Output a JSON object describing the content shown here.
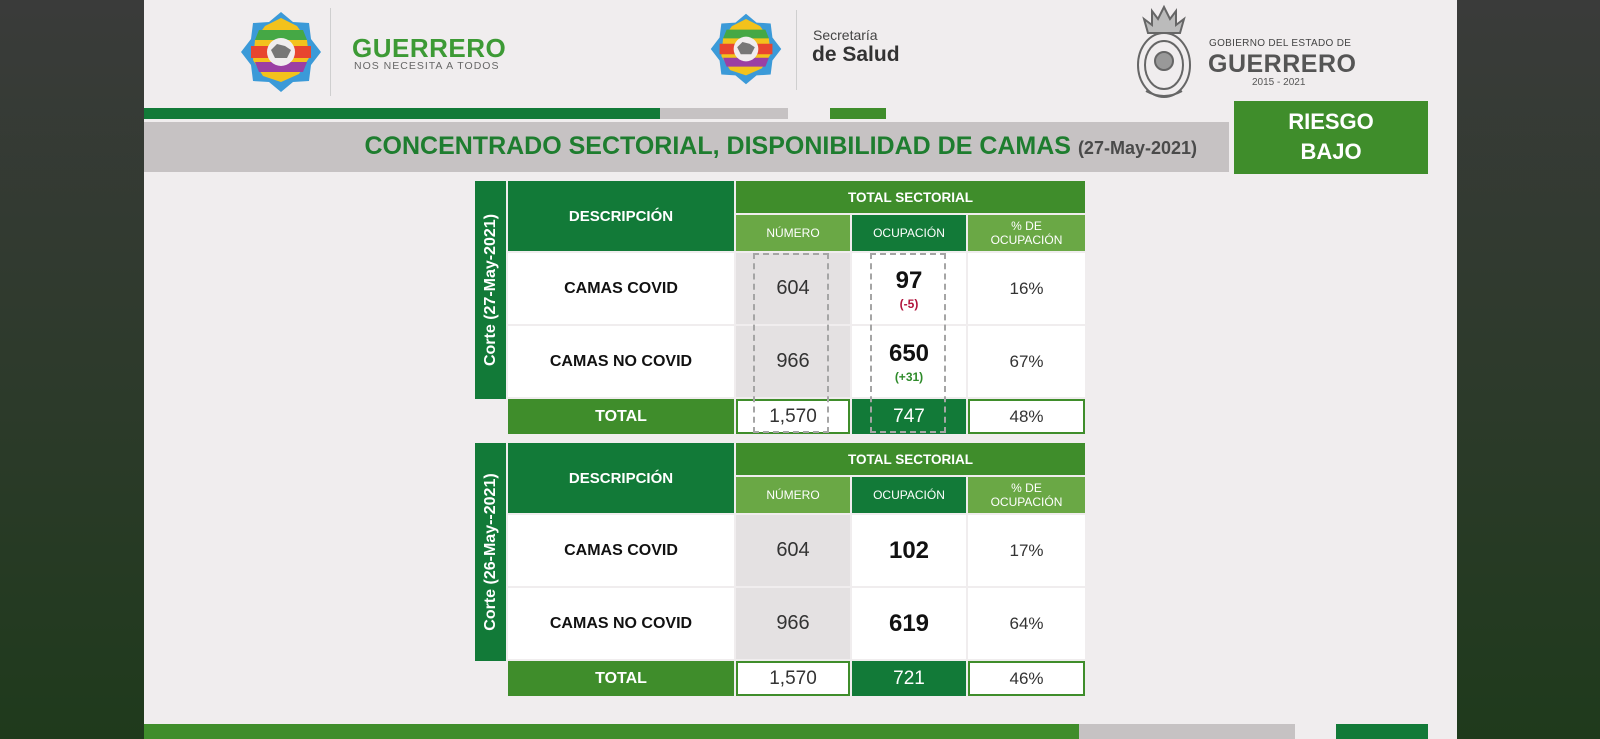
{
  "header": {
    "brand1_title": "GUERRERO",
    "brand1_sub": "NOS NECESITA A TODOS",
    "brand2_top": "Secretaría",
    "brand2_main": "de Salud",
    "brand3_top": "GOBIERNO DEL ESTADO DE",
    "brand3_main": "GUERRERO",
    "brand3_years": "2015 - 2021"
  },
  "title": {
    "main": "CONCENTRADO SECTORIAL, DISPONIBILIDAD DE CAMAS",
    "date": "(27-May-2021)"
  },
  "risk": {
    "line1": "RIESGO",
    "line2": "BAJO"
  },
  "colors": {
    "dark_green": "#127a38",
    "mid_green": "#3f8d2b",
    "light_green": "#6aa845",
    "delta_negative": "#b1143c",
    "delta_positive": "#2e8b2a"
  },
  "tables": [
    {
      "side_label": "Corte (27-May-2021)",
      "header_desc": "DESCRIPCIÓN",
      "header_total": "TOTAL SECTORIAL",
      "col_numero": "NÚMERO",
      "col_ocupacion": "OCUPACIÓN",
      "col_pct_1": "% DE",
      "col_pct_2": "OCUPACIÓN",
      "rows": [
        {
          "label": "CAMAS COVID",
          "numero": "604",
          "ocupacion": "97",
          "delta": "(-5)",
          "pct": "16%"
        },
        {
          "label": "CAMAS NO COVID",
          "numero": "966",
          "ocupacion": "650",
          "delta": "(+31)",
          "pct": "67%"
        }
      ],
      "total": {
        "label": "TOTAL",
        "numero": "1,570",
        "ocupacion": "747",
        "pct": "48%"
      }
    },
    {
      "side_label": "Corte (26-May--2021)",
      "header_desc": "DESCRIPCIÓN",
      "header_total": "TOTAL SECTORIAL",
      "col_numero": "NÚMERO",
      "col_ocupacion": "OCUPACIÓN",
      "col_pct_1": "% DE",
      "col_pct_2": "OCUPACIÓN",
      "rows": [
        {
          "label": "CAMAS COVID",
          "numero": "604",
          "ocupacion": "102",
          "pct": "17%"
        },
        {
          "label": "CAMAS NO COVID",
          "numero": "966",
          "ocupacion": "619",
          "pct": "64%"
        }
      ],
      "total": {
        "label": "TOTAL",
        "numero": "1,570",
        "ocupacion": "721",
        "pct": "46%"
      }
    }
  ]
}
